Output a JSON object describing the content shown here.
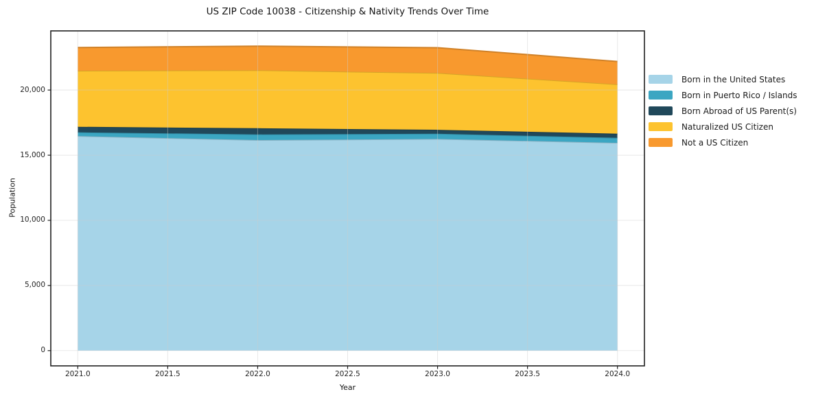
{
  "chart_data": {
    "type": "area",
    "stacked": true,
    "title": "US ZIP Code 10038 - Citizenship & Nativity Trends Over Time",
    "xlabel": "Year",
    "ylabel": "Population",
    "x": [
      2021,
      2022,
      2023,
      2024
    ],
    "series": [
      {
        "name": "Born in the United States",
        "color": "#a6d4e8",
        "values": [
          16470,
          16160,
          16250,
          15950
        ]
      },
      {
        "name": "Born in Puerto Rico / Islands",
        "color": "#3ba6c2",
        "values": [
          290,
          440,
          400,
          385
        ]
      },
      {
        "name": "Born Abroad of US Parent(s)",
        "color": "#20485a",
        "values": [
          420,
          470,
          300,
          315
        ]
      },
      {
        "name": "Naturalized US Citizen",
        "color": "#fdc32f",
        "values": [
          4300,
          4450,
          4360,
          3790
        ]
      },
      {
        "name": "Not a US Citizen",
        "color": "#f8992e",
        "values": [
          1780,
          1850,
          1940,
          1750
        ]
      }
    ],
    "totals": [
      23260,
      23370,
      23250,
      22190
    ],
    "xlim": [
      2020.85,
      2024.15
    ],
    "ylim": [
      -1170,
      24540
    ],
    "x_ticks": [
      {
        "v": 2021.0,
        "label": "2021.0"
      },
      {
        "v": 2021.5,
        "label": "2021.5"
      },
      {
        "v": 2022.0,
        "label": "2022.0"
      },
      {
        "v": 2022.5,
        "label": "2022.5"
      },
      {
        "v": 2023.0,
        "label": "2023.0"
      },
      {
        "v": 2023.5,
        "label": "2023.5"
      },
      {
        "v": 2024.0,
        "label": "2024.0"
      }
    ],
    "y_ticks": [
      {
        "v": 0,
        "label": "0"
      },
      {
        "v": 5000,
        "label": "5,000"
      },
      {
        "v": 10000,
        "label": "10,000"
      },
      {
        "v": 15000,
        "label": "15,000"
      },
      {
        "v": 20000,
        "label": "20,000"
      }
    ],
    "grid": true,
    "legend_position": "right",
    "colors": {
      "background": "#ffffff",
      "spine": "#1f1f1f",
      "grid": "#cccccc",
      "text": "#1a1a1a"
    }
  }
}
